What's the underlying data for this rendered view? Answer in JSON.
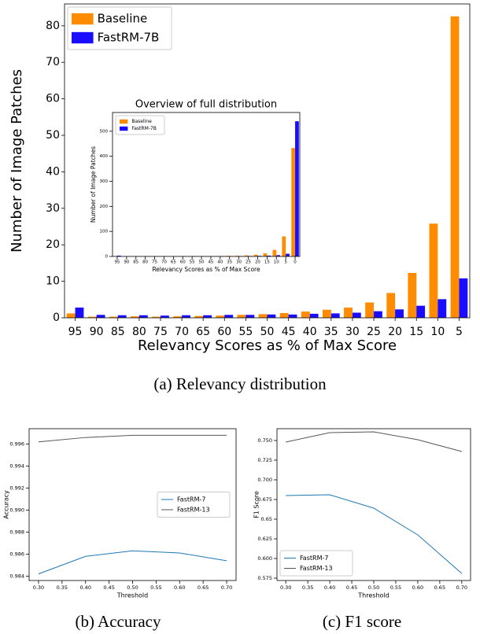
{
  "chart_data": [
    {
      "type": "bar",
      "caption": "(a)  Relevancy distribution",
      "xlabel": "Relevancy Scores as % of Max Score",
      "ylabel": "Number of Image Patches",
      "categories": [
        "95",
        "90",
        "85",
        "80",
        "75",
        "70",
        "65",
        "60",
        "55",
        "50",
        "45",
        "40",
        "35",
        "30",
        "25",
        "20",
        "15",
        "10",
        "5"
      ],
      "series": [
        {
          "name": "Baseline",
          "color": "#ff8c00",
          "values": [
            1.2,
            0.3,
            0.3,
            0.4,
            0.3,
            0.4,
            0.5,
            0.6,
            0.8,
            1.0,
            1.3,
            1.7,
            2.2,
            2.8,
            4.2,
            6.8,
            12.3,
            25.8,
            82.6
          ]
        },
        {
          "name": "FastRM-7B",
          "color": "#1a0dff",
          "values": [
            2.8,
            0.8,
            0.7,
            0.7,
            0.6,
            0.7,
            0.7,
            0.8,
            0.8,
            0.9,
            0.9,
            1.1,
            1.2,
            1.4,
            1.8,
            2.3,
            3.3,
            5.1,
            10.8
          ]
        }
      ],
      "ylim": [
        0,
        86
      ],
      "yticks": [
        0,
        10,
        20,
        30,
        40,
        50,
        60,
        70,
        80
      ],
      "legend": "upper left"
    },
    {
      "type": "bar",
      "title": "Overview of full distribution",
      "xlabel": "Relevancy Scores as % of Max Score",
      "ylabel": "Number of Image Patches",
      "categories": [
        "95",
        "90",
        "85",
        "80",
        "75",
        "70",
        "65",
        "60",
        "55",
        "50",
        "45",
        "40",
        "35",
        "30",
        "25",
        "20",
        "15",
        "10",
        "5",
        "0"
      ],
      "series": [
        {
          "name": "Baseline",
          "color": "#ff8c00",
          "values": [
            1,
            0.3,
            0.3,
            0.4,
            0.3,
            0.4,
            0.5,
            0.6,
            0.8,
            1,
            1.3,
            1.7,
            2.2,
            2.8,
            4.2,
            6.8,
            12.3,
            26,
            80,
            433
          ]
        },
        {
          "name": "FastRM-7B",
          "color": "#1a0dff",
          "values": [
            3,
            0.8,
            0.7,
            0.7,
            0.6,
            0.7,
            0.7,
            0.8,
            0.8,
            0.9,
            0.9,
            1.1,
            1.2,
            1.4,
            1.8,
            2.3,
            3.3,
            5.1,
            10.8,
            540
          ]
        }
      ],
      "ylim": [
        0,
        575
      ],
      "yticks": [
        0,
        100,
        200,
        300,
        400,
        500
      ],
      "legend": "upper left"
    },
    {
      "type": "line",
      "caption": "(b)  Accuracy",
      "xlabel": "Threshold",
      "ylabel": "Accuracy",
      "x": [
        0.3,
        0.4,
        0.5,
        0.6,
        0.7
      ],
      "series": [
        {
          "name": "FastRM-7",
          "color": "#1f77b4",
          "values": [
            0.9842,
            0.9858,
            0.9863,
            0.9861,
            0.9854
          ]
        },
        {
          "name": "FastRM-13",
          "color": "#555555",
          "values": [
            0.9962,
            0.9966,
            0.9968,
            0.9968,
            0.9968
          ]
        }
      ],
      "xlim": [
        0.28,
        0.72
      ],
      "xticks": [
        {
          "value": 0.3,
          "label": "0.30"
        },
        0.35,
        {
          "value": 0.4,
          "label": "0.40"
        },
        0.45,
        {
          "value": 0.5,
          "label": "0.50"
        },
        0.55,
        {
          "value": 0.6,
          "label": "0.60"
        },
        0.65,
        {
          "value": 0.7,
          "label": "0.70"
        }
      ],
      "ylim": [
        0.9836,
        0.9974
      ],
      "yticks": [
        0.984,
        0.986,
        0.988,
        {
          "value": 0.99,
          "label": "0.990"
        },
        0.992,
        0.994,
        0.996
      ],
      "legend": "center right"
    },
    {
      "type": "line",
      "caption": "(c)  F1 score",
      "xlabel": "Threshold",
      "ylabel": "F1 Score",
      "x": [
        0.3,
        0.4,
        0.5,
        0.6,
        0.7
      ],
      "series": [
        {
          "name": "FastRM-7",
          "color": "#1f77b4",
          "values": [
            0.68,
            0.681,
            0.664,
            0.63,
            0.581
          ]
        },
        {
          "name": "FastRM-13",
          "color": "#555555",
          "values": [
            0.748,
            0.76,
            0.761,
            0.751,
            0.736
          ]
        }
      ],
      "xlim": [
        0.28,
        0.72
      ],
      "xticks": [
        {
          "value": 0.3,
          "label": "0.30"
        },
        0.35,
        {
          "value": 0.4,
          "label": "0.40"
        },
        0.45,
        {
          "value": 0.5,
          "label": "0.50"
        },
        0.55,
        {
          "value": 0.6,
          "label": "0.60"
        },
        0.65,
        {
          "value": 0.7,
          "label": "0.70"
        }
      ],
      "ylim": [
        0.572,
        0.765
      ],
      "yticks": [
        0.575,
        {
          "value": 0.6,
          "label": "0.600"
        },
        0.625,
        0.65,
        0.675,
        {
          "value": 0.7,
          "label": "0.700"
        },
        0.725,
        {
          "value": 0.75,
          "label": "0.750"
        }
      ],
      "legend": "lower left"
    }
  ]
}
